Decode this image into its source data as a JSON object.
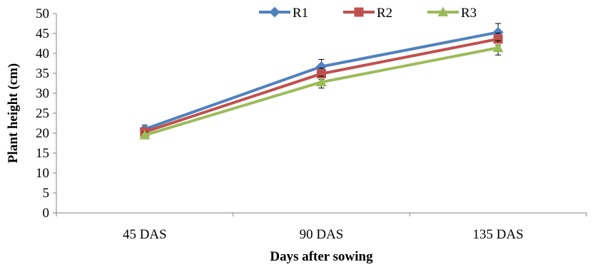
{
  "chart_data": {
    "type": "line",
    "categories": [
      "45 DAS",
      "90 DAS",
      "135 DAS"
    ],
    "series": [
      {
        "name": "R1",
        "values": [
          21.0,
          36.7,
          45.3
        ],
        "errors": [
          1.0,
          1.8,
          2.2
        ],
        "color": "#4F81BD",
        "marker": "diamond"
      },
      {
        "name": "R2",
        "values": [
          20.3,
          34.9,
          43.6
        ],
        "errors": [
          0.8,
          1.4,
          1.5
        ],
        "color": "#C0504D",
        "marker": "square"
      },
      {
        "name": "R3",
        "values": [
          19.5,
          32.8,
          41.4
        ],
        "errors": [
          0.8,
          1.5,
          1.8
        ],
        "color": "#9BBB59",
        "marker": "triangle"
      }
    ],
    "xlabel": "Days after sowing",
    "ylabel": "Plant height (cm)",
    "ylim": [
      0,
      50
    ],
    "yticks": [
      0,
      5,
      10,
      15,
      20,
      25,
      30,
      35,
      40,
      45,
      50
    ],
    "grid": false,
    "legend": "top-center"
  }
}
